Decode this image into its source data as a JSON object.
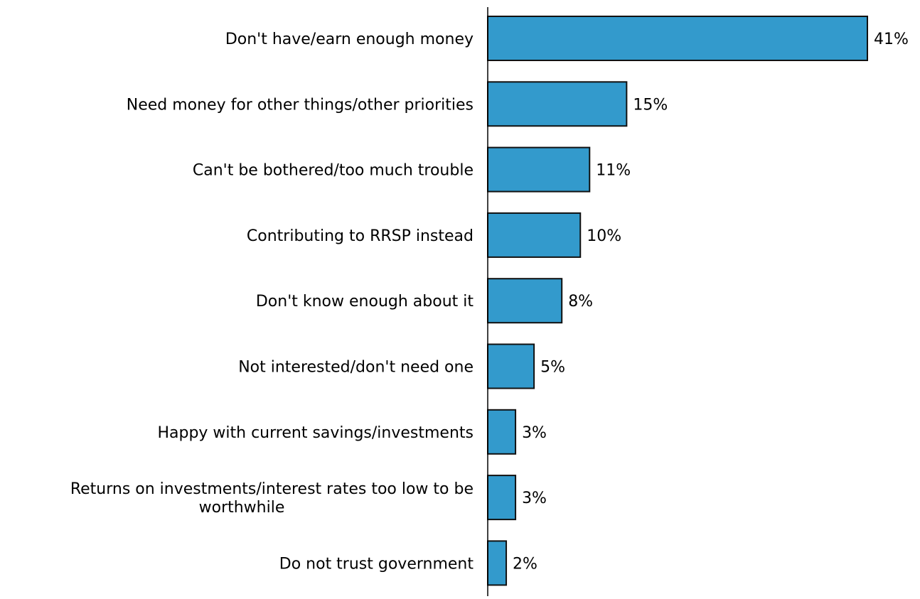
{
  "chart_data": {
    "type": "bar",
    "orientation": "horizontal",
    "categories": [
      [
        "Don't have/earn enough money"
      ],
      [
        "Need money for other things/other priorities"
      ],
      [
        "Can't be bothered/too much trouble"
      ],
      [
        "Contributing to RRSP instead"
      ],
      [
        "Don't know enough about it"
      ],
      [
        "Not interested/don't need one"
      ],
      [
        "Happy with current savings/investments"
      ],
      [
        "Returns on investments/interest rates too low to be",
        "worthwhile"
      ],
      [
        "Do not trust government"
      ]
    ],
    "values": [
      41,
      15,
      11,
      10,
      8,
      5,
      3,
      3,
      2
    ],
    "data_labels": [
      "41%",
      "15%",
      "11%",
      "10%",
      "8%",
      "5%",
      "3%",
      "3%",
      "2%"
    ],
    "xlim": [
      0,
      41
    ],
    "grid": false,
    "legend": "none",
    "colors": {
      "bar_fill": "#339acc",
      "bar_stroke": "#111111",
      "axis": "#000000",
      "text": "#000000"
    }
  }
}
